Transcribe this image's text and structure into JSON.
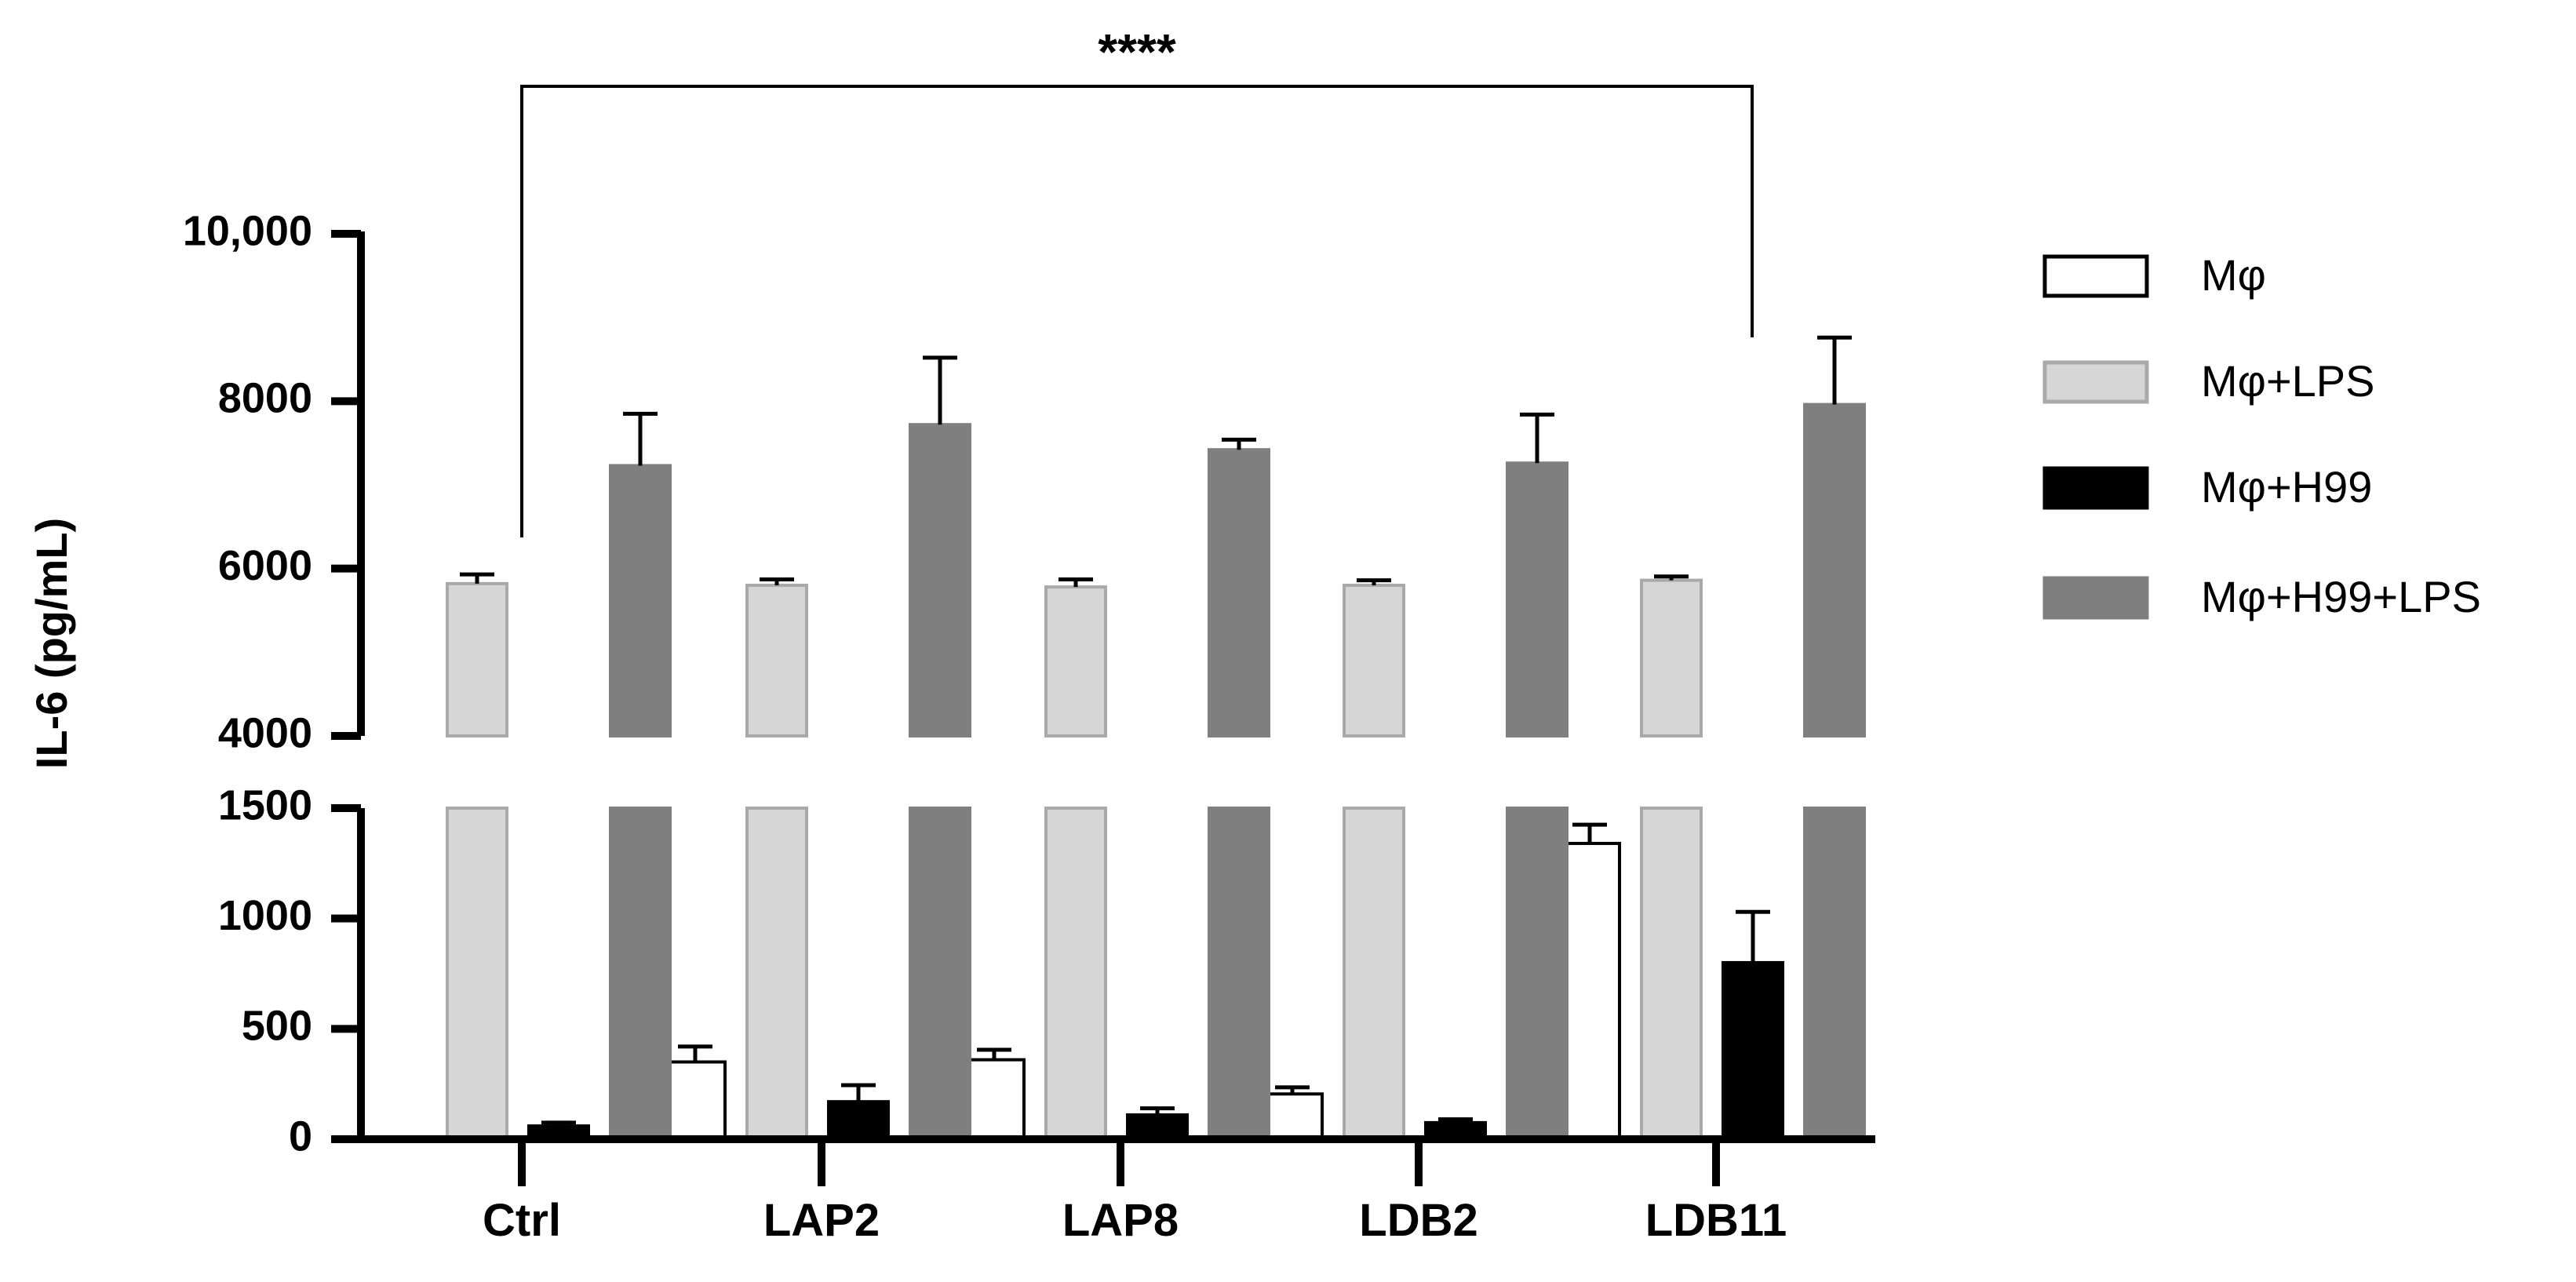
{
  "chart_data": {
    "type": "bar",
    "title": "",
    "xlabel": "",
    "ylabel": "IL-6 (pg/mL)",
    "axis_break": true,
    "lower_segment": {
      "ylim": [
        0,
        1500
      ],
      "ticks": [
        0,
        500,
        1000,
        1500
      ],
      "tick_labels": [
        "0",
        "500",
        "1000",
        "1500"
      ]
    },
    "upper_segment": {
      "ylim": [
        4000,
        10000
      ],
      "ticks": [
        4000,
        6000,
        8000,
        10000
      ],
      "tick_labels": [
        "4000",
        "6000",
        "8000",
        "10,000"
      ]
    },
    "categories": [
      "Ctrl",
      "LAP2",
      "LAP8",
      "LDB2",
      "LDB11"
    ],
    "series": [
      {
        "name": "Mφ",
        "color": "#ffffff",
        "stroke": "#000000",
        "values": [
          0,
          350,
          360,
          205,
          1340
        ],
        "errors": [
          0,
          70,
          45,
          30,
          85
        ]
      },
      {
        "name": "Mφ+LPS",
        "color": "#d6d6d6",
        "stroke": "#a9a9a9",
        "values": [
          5820,
          5800,
          5780,
          5800,
          5860
        ],
        "errors": [
          110,
          70,
          90,
          60,
          45
        ]
      },
      {
        "name": "Mφ+H99",
        "color": "#000000",
        "stroke": "#000000",
        "values": [
          60,
          170,
          110,
          75,
          800
        ],
        "errors": [
          15,
          75,
          30,
          15,
          230
        ]
      },
      {
        "name": "Mφ+H99+LPS",
        "color": "#7f7f7f",
        "stroke": "#7f7f7f",
        "values": [
          7230,
          7720,
          7420,
          7260,
          7960
        ],
        "errors": [
          620,
          800,
          120,
          580,
          800
        ]
      }
    ],
    "significance": {
      "label": "****",
      "from": "Ctrl",
      "to": "LDB11"
    },
    "legend": {
      "position": "right"
    }
  }
}
